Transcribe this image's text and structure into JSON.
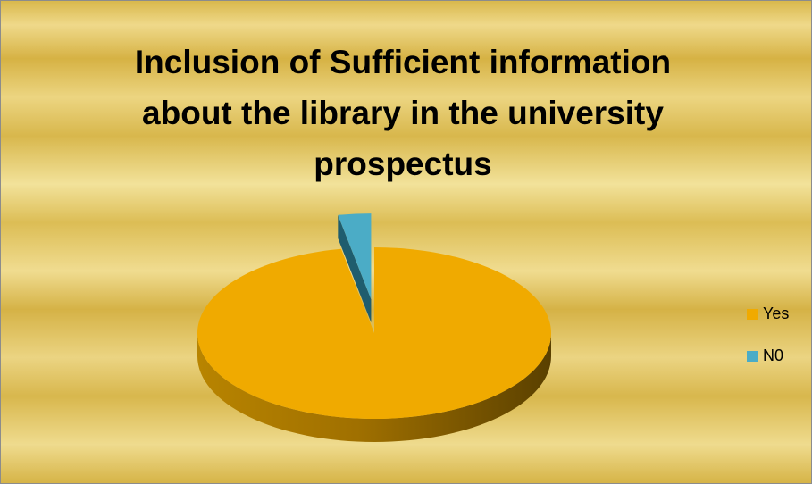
{
  "chart_data": {
    "type": "pie",
    "title": "Inclusion of Sufficient information about the library in the university prospectus",
    "categories": [
      "Yes",
      "N0"
    ],
    "values": [
      97,
      3
    ],
    "colors": [
      "#f0aa00",
      "#4bacc6"
    ],
    "legend": "right"
  }
}
